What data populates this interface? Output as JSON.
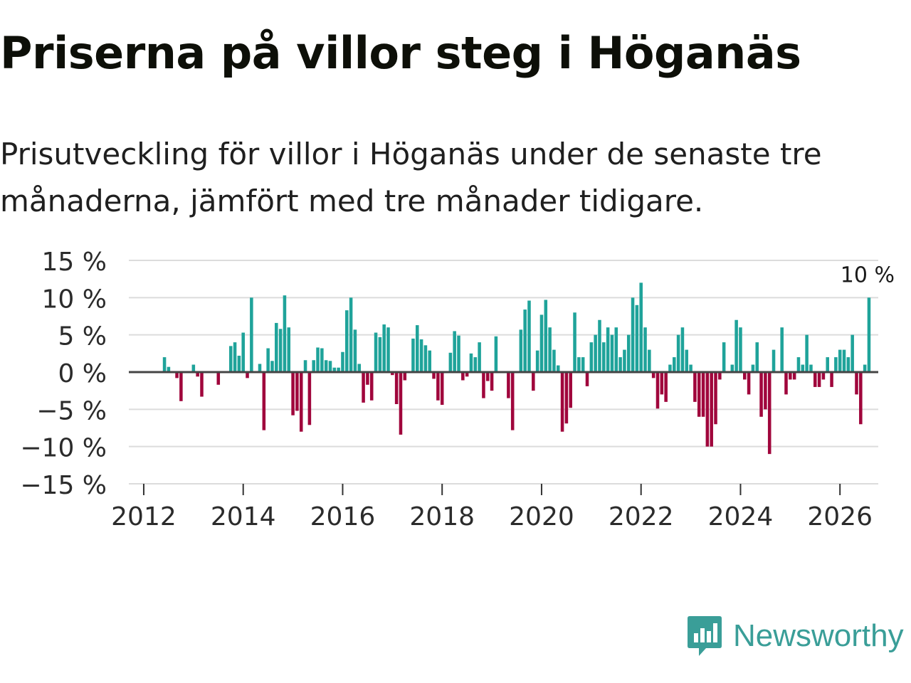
{
  "title": "Priserna på villor steg i Höganäs",
  "subtitle": "Prisutveckling för villor i Höganäs under de senaste tre månaderna, jämfört med tre månader tidigare.",
  "logo": {
    "text": "Newsworthy",
    "icon": "newsworthy-chart-bubble-icon"
  },
  "colors": {
    "positive": "#1fa39a",
    "negative": "#a0063c",
    "grid": "#dcdcdc",
    "zero": "#444444",
    "accent": "#3a9e98"
  },
  "chart_data": {
    "type": "bar",
    "title": "Priserna på villor steg i Höganäs",
    "xlabel": "",
    "ylabel": "",
    "grid": true,
    "legend": "none",
    "ylim": [
      -15,
      15
    ],
    "xlim": [
      2011.7,
      2026.77
    ],
    "y_ticks": [
      {
        "value": 15,
        "label": "15 %"
      },
      {
        "value": 10,
        "label": "10 %"
      },
      {
        "value": 5,
        "label": "5 %"
      },
      {
        "value": 0,
        "label": "0 %"
      },
      {
        "value": -5,
        "label": "−5 %"
      },
      {
        "value": -10,
        "label": "−10 %"
      },
      {
        "value": -15,
        "label": "−15 %"
      }
    ],
    "x_ticks": [
      {
        "value": 2012,
        "label": "2012"
      },
      {
        "value": 2014,
        "label": "2014"
      },
      {
        "value": 2016,
        "label": "2016"
      },
      {
        "value": 2018,
        "label": "2018"
      },
      {
        "value": 2020,
        "label": "2020"
      },
      {
        "value": 2022,
        "label": "2022"
      },
      {
        "value": 2024,
        "label": "2024"
      },
      {
        "value": 2026,
        "label": "2026"
      }
    ],
    "annotation": {
      "value": 10,
      "label": "10 %"
    },
    "start": {
      "year": 2012,
      "month": 6
    },
    "values": [
      2,
      0.7,
      0,
      -0.8,
      -3.9,
      0,
      0,
      1,
      -0.6,
      -3.3,
      0,
      0,
      0,
      -1.7,
      0,
      0,
      3.5,
      4,
      2.2,
      5.3,
      -0.8,
      10,
      0,
      1.1,
      -7.8,
      3.2,
      1.5,
      6.6,
      5.8,
      10.3,
      6,
      -5.8,
      -5.2,
      -8,
      1.6,
      -7.1,
      1.6,
      3.3,
      3.2,
      1.6,
      1.5,
      0.6,
      0.6,
      2.7,
      8.3,
      10,
      5.7,
      1.1,
      -4.1,
      -1.7,
      -3.8,
      5.3,
      4.7,
      6.4,
      6,
      -0.4,
      -4.3,
      -8.4,
      -1.1,
      0,
      4.5,
      6.3,
      4.4,
      3.6,
      2.9,
      -0.9,
      -3.8,
      -4.4,
      0,
      2.6,
      5.5,
      4.9,
      -1.1,
      -0.6,
      2.5,
      2,
      4,
      -3.5,
      -1.2,
      -2.5,
      4.8,
      0,
      0,
      -3.5,
      -7.8,
      0,
      5.7,
      8.4,
      9.6,
      -2.5,
      2.9,
      7.7,
      9.7,
      6,
      3,
      0.9,
      -8,
      -6.9,
      -4.8,
      8,
      2,
      2,
      -1.9,
      4,
      5,
      7,
      4,
      6,
      5,
      6,
      2,
      3,
      5,
      10,
      9,
      12,
      6,
      3,
      -0.8,
      -4.9,
      -3,
      -4,
      1,
      2,
      5,
      6,
      3,
      1,
      -4,
      -6,
      -6,
      -10,
      -10,
      -7,
      -1,
      4,
      0,
      1,
      7,
      6,
      -1,
      -3,
      1,
      4,
      -6,
      -5,
      -11,
      3,
      0,
      6,
      -3,
      -1,
      -1,
      2,
      1,
      5,
      1,
      -2,
      -2,
      -1,
      2,
      -2,
      2,
      3,
      3,
      2,
      5,
      -3,
      -7,
      1,
      10
    ]
  }
}
